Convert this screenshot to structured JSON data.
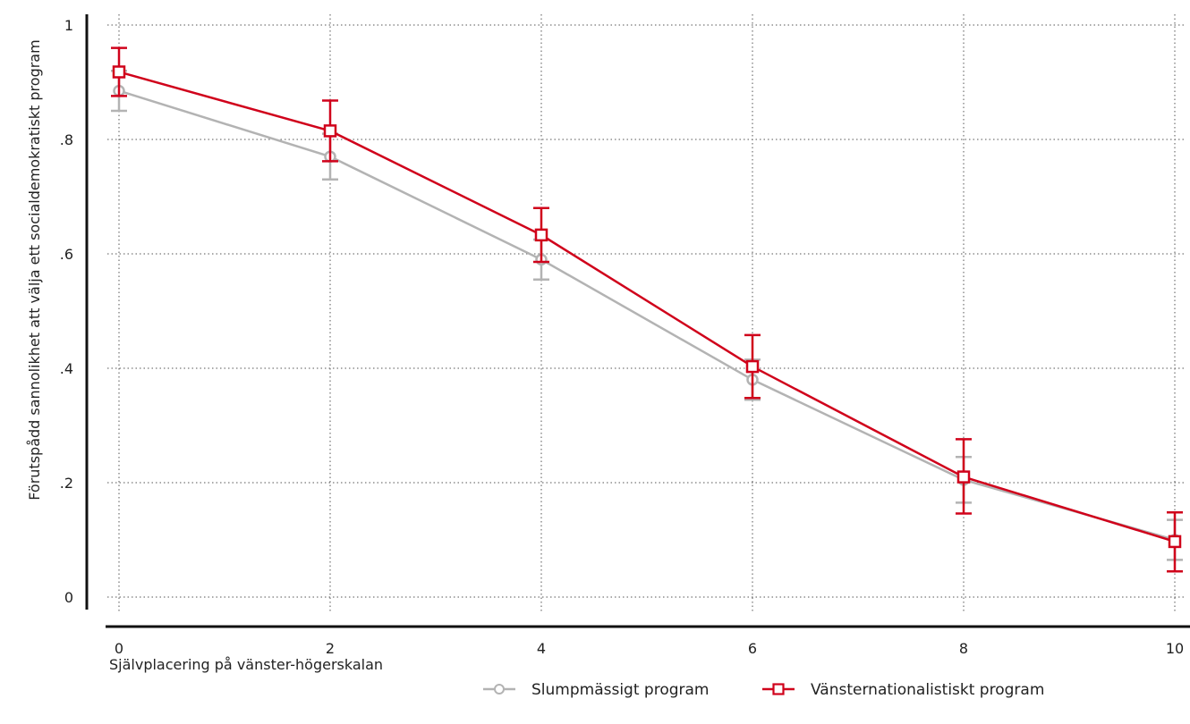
{
  "chart_data": {
    "type": "line",
    "title": "",
    "xlabel": "Självplacering på vänster-högerskalan",
    "ylabel": "Förutspådd sannolikhet att välja ett socialdemokratiskt program",
    "x": [
      0,
      2,
      4,
      6,
      8,
      10
    ],
    "xlim": [
      0,
      10
    ],
    "ylim": [
      0,
      1
    ],
    "x_ticks": [
      "0",
      "2",
      "4",
      "6",
      "8",
      "10"
    ],
    "y_ticks": [
      {
        "value": 0,
        "label": "0"
      },
      {
        "value": 0.2,
        "label": ".2"
      },
      {
        "value": 0.4,
        "label": ".4"
      },
      {
        "value": 0.6,
        "label": ".6"
      },
      {
        "value": 0.8,
        "label": ".8"
      },
      {
        "value": 1,
        "label": "1"
      }
    ],
    "grid": true,
    "legend_position": "bottom-right",
    "series": [
      {
        "name": "Slumpmässigt program",
        "color": "#b3b3b3",
        "marker": "circle",
        "values": [
          0.885,
          0.77,
          0.59,
          0.38,
          0.205,
          0.1
        ],
        "ci_low": [
          0.85,
          0.73,
          0.555,
          0.345,
          0.165,
          0.065
        ],
        "ci_high": [
          0.92,
          0.81,
          0.625,
          0.415,
          0.245,
          0.135
        ]
      },
      {
        "name": "Vänsternationalistiskt program",
        "color": "#d0021b",
        "marker": "square",
        "values": [
          0.918,
          0.815,
          0.633,
          0.403,
          0.21,
          0.097
        ],
        "ci_low": [
          0.876,
          0.762,
          0.586,
          0.348,
          0.146,
          0.045
        ],
        "ci_high": [
          0.96,
          0.868,
          0.68,
          0.458,
          0.276,
          0.148
        ]
      }
    ]
  }
}
